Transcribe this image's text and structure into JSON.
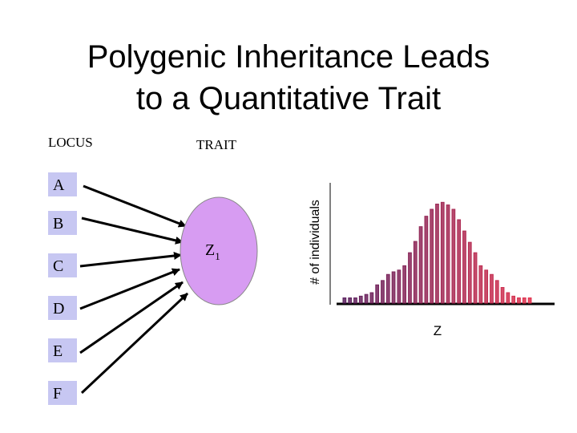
{
  "title": [
    "Polygenic Inheritance Leads",
    "to a Quantitative Trait"
  ],
  "locus_label": "LOCUS",
  "trait_label": "TRAIT",
  "loci": [
    "A",
    "B",
    "C",
    "D",
    "E",
    "F"
  ],
  "trait_node": {
    "base": "Z",
    "subscript": "1"
  },
  "chart_data": {
    "type": "bar",
    "y_label": "# of individuals",
    "x_label": "Z",
    "values": [
      6,
      6,
      6,
      8,
      10,
      12,
      21,
      26,
      33,
      36,
      38,
      43,
      58,
      71,
      88,
      100,
      108,
      114,
      116,
      113,
      108,
      96,
      83,
      70,
      58,
      43,
      38,
      33,
      26,
      18,
      12,
      8,
      6,
      6,
      6
    ],
    "ylim": [
      0,
      120
    ],
    "color_start": "#5a1f5e",
    "color_end": "#e0304c"
  }
}
